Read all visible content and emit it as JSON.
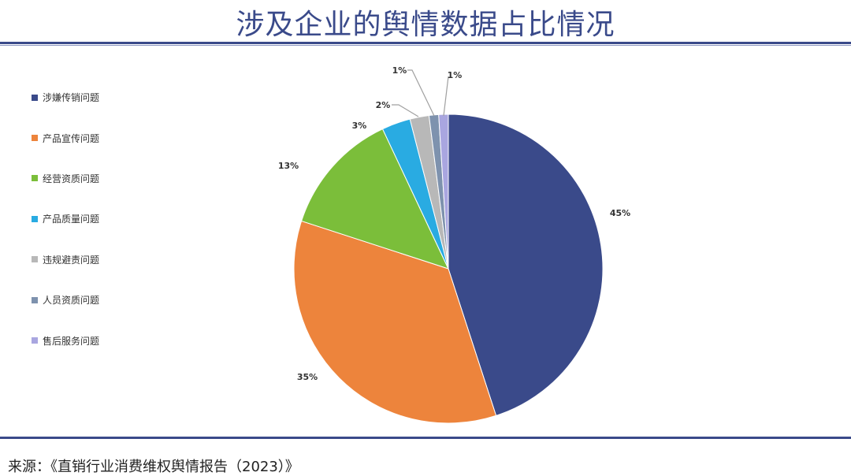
{
  "title": "涉及企业的舆情数据占比情况",
  "source": "来源：《直销行业消费维权舆情报告（2023）》",
  "chart_data": {
    "type": "pie",
    "title": "涉及企业的舆情数据占比情况",
    "start": "12 o'clock, clockwise",
    "legend_position": "left",
    "categories": [
      "涉嫌传销问题",
      "产品宣传问题",
      "经营资质问题",
      "产品质量问题",
      "违规避责问题",
      "人员资质问题",
      "售后服务问题"
    ],
    "values": [
      45,
      35,
      13,
      3,
      2,
      1,
      1
    ],
    "labels": [
      "45%",
      "35%",
      "13%",
      "3%",
      "2%",
      "1%",
      "1%"
    ],
    "colors": [
      "#3a4a8a",
      "#ed843c",
      "#7bbe3a",
      "#29abe2",
      "#b8b8b8",
      "#7e92ae",
      "#a9a6e0"
    ]
  }
}
